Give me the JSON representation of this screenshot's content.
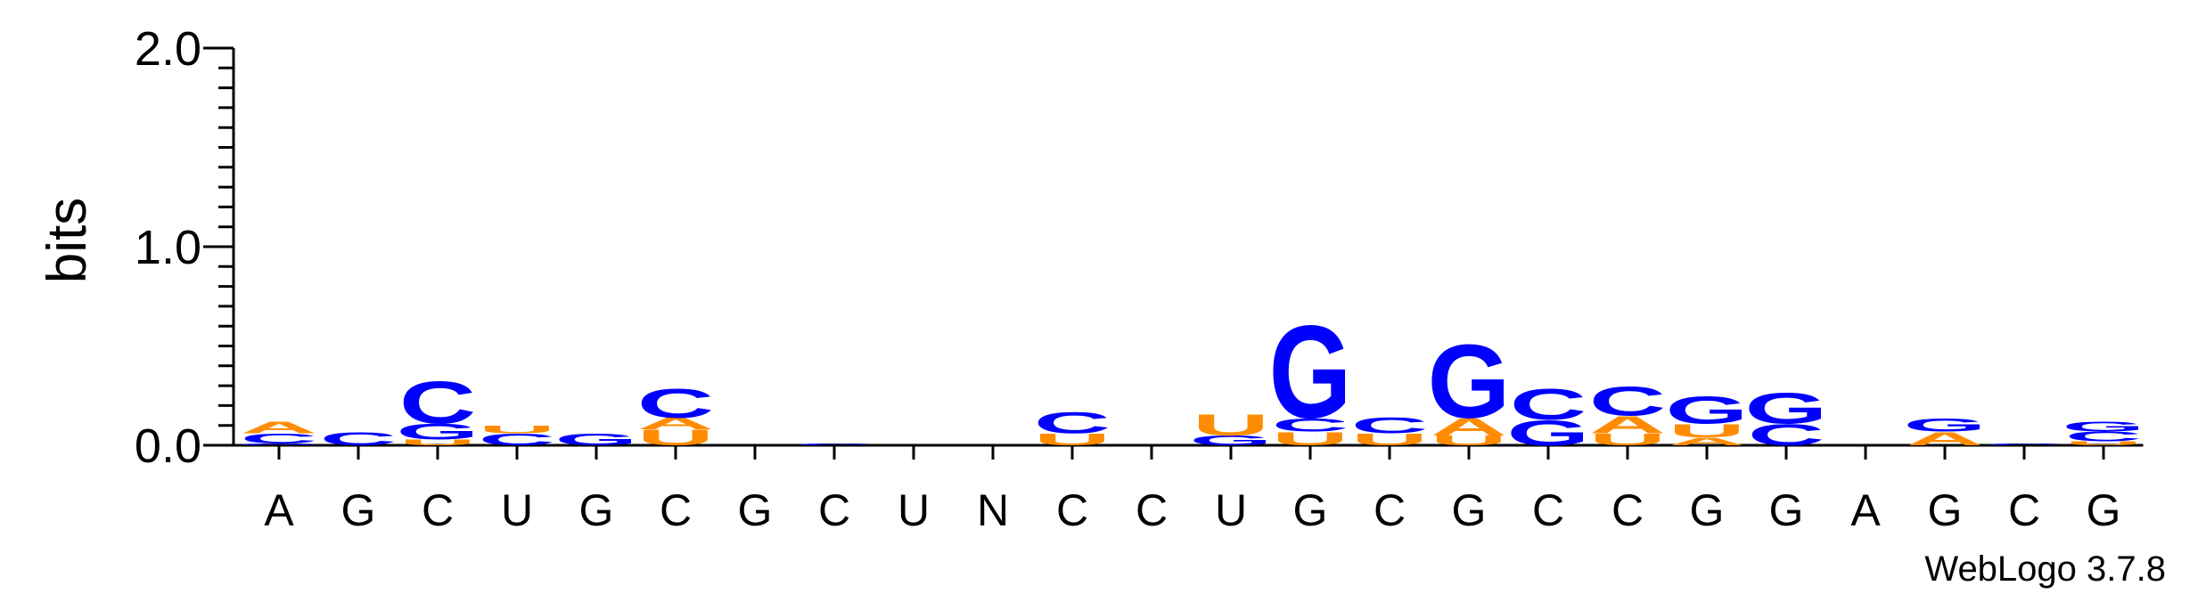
{
  "chart_data": {
    "type": "sequence-logo",
    "ylabel": "bits",
    "ylim": [
      0,
      2
    ],
    "yticks": [
      "0.0",
      "1.0",
      "2.0"
    ],
    "colors": {
      "A": "#ff8c00",
      "U": "#ff8c00",
      "C": "#0000ff",
      "G": "#0000ff"
    },
    "positions": [
      {
        "label": "A",
        "stack": [
          {
            "l": "G",
            "h": 0.01
          },
          {
            "l": "C",
            "h": 0.05
          },
          {
            "l": "A",
            "h": 0.06
          }
        ]
      },
      {
        "label": "G",
        "stack": [
          {
            "l": "C",
            "h": 0.07
          }
        ]
      },
      {
        "label": "C",
        "stack": [
          {
            "l": "U",
            "h": 0.03
          },
          {
            "l": "G",
            "h": 0.08
          },
          {
            "l": "C",
            "h": 0.22
          }
        ]
      },
      {
        "label": "U",
        "stack": [
          {
            "l": "C",
            "h": 0.06
          },
          {
            "l": "U",
            "h": 0.04
          }
        ]
      },
      {
        "label": "G",
        "stack": [
          {
            "l": "G",
            "h": 0.06
          }
        ]
      },
      {
        "label": "C",
        "stack": [
          {
            "l": "U",
            "h": 0.08
          },
          {
            "l": "A",
            "h": 0.06
          },
          {
            "l": "C",
            "h": 0.15
          }
        ]
      },
      {
        "label": "G",
        "stack": []
      },
      {
        "label": "C",
        "stack": [
          {
            "l": "C",
            "h": 0.01
          }
        ]
      },
      {
        "label": "U",
        "stack": []
      },
      {
        "label": "N",
        "stack": []
      },
      {
        "label": "C",
        "stack": [
          {
            "l": "U",
            "h": 0.06
          },
          {
            "l": "C",
            "h": 0.11
          }
        ]
      },
      {
        "label": "C",
        "stack": []
      },
      {
        "label": "U",
        "stack": [
          {
            "l": "G",
            "h": 0.05
          },
          {
            "l": "U",
            "h": 0.11
          }
        ]
      },
      {
        "label": "G",
        "stack": [
          {
            "l": "U",
            "h": 0.07
          },
          {
            "l": "C",
            "h": 0.07
          },
          {
            "l": "G",
            "h": 0.48
          }
        ]
      },
      {
        "label": "C",
        "stack": [
          {
            "l": "U",
            "h": 0.06
          },
          {
            "l": "C",
            "h": 0.08
          }
        ]
      },
      {
        "label": "G",
        "stack": [
          {
            "l": "U",
            "h": 0.05
          },
          {
            "l": "A",
            "h": 0.09
          },
          {
            "l": "G",
            "h": 0.38
          }
        ]
      },
      {
        "label": "C",
        "stack": [
          {
            "l": "G",
            "h": 0.13
          },
          {
            "l": "C",
            "h": 0.16
          }
        ]
      },
      {
        "label": "C",
        "stack": [
          {
            "l": "U",
            "h": 0.06
          },
          {
            "l": "A",
            "h": 0.09
          },
          {
            "l": "C",
            "h": 0.15
          }
        ]
      },
      {
        "label": "G",
        "stack": [
          {
            "l": "A",
            "h": 0.04
          },
          {
            "l": "U",
            "h": 0.07
          },
          {
            "l": "G",
            "h": 0.14
          }
        ]
      },
      {
        "label": "G",
        "stack": [
          {
            "l": "C",
            "h": 0.11
          },
          {
            "l": "G",
            "h": 0.16
          }
        ]
      },
      {
        "label": "A",
        "stack": []
      },
      {
        "label": "G",
        "stack": [
          {
            "l": "A",
            "h": 0.07
          },
          {
            "l": "G",
            "h": 0.07
          }
        ]
      },
      {
        "label": "C",
        "stack": [
          {
            "l": "C",
            "h": 0.01
          }
        ]
      },
      {
        "label": "G",
        "stack": [
          {
            "l": "U",
            "h": 0.02
          },
          {
            "l": "C",
            "h": 0.05
          },
          {
            "l": "G",
            "h": 0.05
          }
        ]
      }
    ]
  },
  "footer": {
    "credit": "WebLogo 3.7.8"
  }
}
